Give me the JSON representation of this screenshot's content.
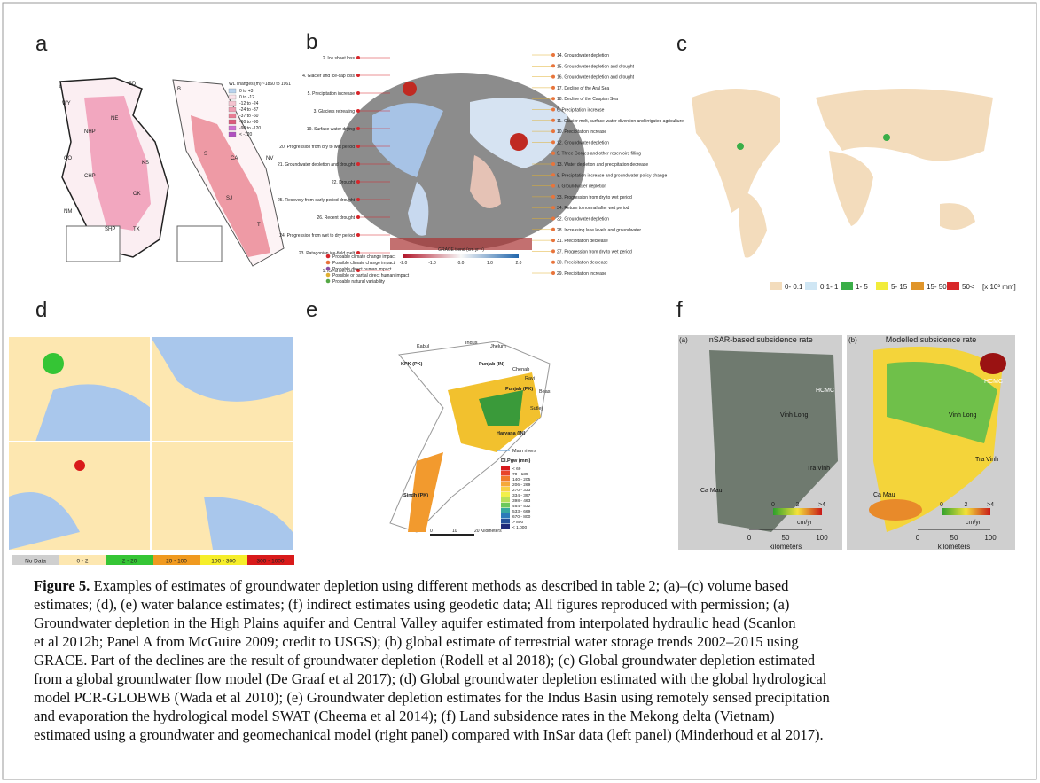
{
  "panels": {
    "a": {
      "letter": "a",
      "labels": [
        "A",
        "B",
        "WY",
        "SD",
        "NE",
        "CO",
        "KS",
        "OK",
        "NM",
        "TX",
        "NHP",
        "CHP",
        "SHP",
        "NV",
        "CA",
        "S",
        "SJ",
        "T"
      ],
      "legend_title": "WL changes (m) ~1860 to 1961",
      "legend": [
        "0 to +3",
        "0 to -12",
        "-12 to -24",
        "-24 to -37",
        "-37 to -60",
        "-60 to -90",
        "-90 to -120",
        "< -120"
      ]
    },
    "b": {
      "letter": "b",
      "left_labels": [
        "2. Ice sheet loss",
        "4. Glacier and ice-cap loss",
        "5. Precipitation increase",
        "3. Glaciers retreating",
        "19. Surface water drying",
        "20. Progression from dry to wet period",
        "21. Groundwater depletion and drought",
        "22. Drought",
        "25. Recovery from early-period drought",
        "26. Recent drought",
        "24. Progression from wet to dry period",
        "23. Patagonian ice-field melt",
        "1. Ice-sheet loss"
      ],
      "right_labels": [
        "14. Groundwater depletion",
        "15. Groundwater depletion and drought",
        "16. Groundwater depletion and drought",
        "17. Decline of the Aral Sea",
        "18. Decline of the Caspian Sea",
        "6. Precipitation increase",
        "11. Glacier melt, surface-water diversion and irrigated agriculture",
        "10. Precipitation increase",
        "12. Groundwater depletion",
        "9. Three Gorges and other reservoirs filling",
        "13. Water depletion and precipitation decrease",
        "8. Precipitation increase and groundwater policy change",
        "7. Groundwater depletion",
        "33. Progression from dry to wet period",
        "34. Return to normal after wet period",
        "32. Groundwater depletion",
        "28. Increasing lake levels and groundwater",
        "31. Precipitation decrease",
        "27. Progression from dry to wet period",
        "30. Precipitation decrease",
        "29. Precipitation increase"
      ],
      "legend": [
        {
          "label": "Probable climate change impact",
          "color": "#d7262b"
        },
        {
          "label": "Possible climate change impact",
          "color": "#e8743b"
        },
        {
          "label": "Probable direct human impact",
          "color": "#8a4fa3"
        },
        {
          "label": "Possible or partial direct human impact",
          "color": "#e0b030"
        },
        {
          "label": "Probable natural variability",
          "color": "#55a845"
        }
      ],
      "colorbar_title": "GRACE trend (cm yr⁻¹)",
      "colorbar_ticks": [
        "-2.0",
        "-1.0",
        "0.0",
        "1.0",
        "2.0"
      ]
    },
    "c": {
      "letter": "c",
      "legend": [
        {
          "label": "0- 0.1",
          "color": "#f3dcbc"
        },
        {
          "label": "0.1- 1",
          "color": "#cfe6f4"
        },
        {
          "label": "1- 5",
          "color": "#3aae48"
        },
        {
          "label": "5- 15",
          "color": "#f2ec3a"
        },
        {
          "label": "15- 50",
          "color": "#e0952a"
        },
        {
          "label": "50<",
          "color": "#d8282a"
        }
      ],
      "unit": "[x 10³ mm]"
    },
    "d": {
      "letter": "d",
      "legend": [
        {
          "label": "No Data",
          "color": "#cfcfcf"
        },
        {
          "label": "0 - 2",
          "color": "#fde7b0"
        },
        {
          "label": "2 - 20",
          "color": "#35c535"
        },
        {
          "label": "20 - 100",
          "color": "#f09a20"
        },
        {
          "label": "100 - 300",
          "color": "#f6ee2a"
        },
        {
          "label": "300 - 1000",
          "color": "#d91a1a"
        }
      ]
    },
    "e": {
      "letter": "e",
      "labels": [
        "Kabul",
        "Indus",
        "Jhelum",
        "Chenab",
        "Ravi",
        "Beas",
        "Sutlej",
        "KPK (PK)",
        "Punjab (IN)",
        "Punjab (PK)",
        "Haryana (IN)",
        "Sindh (PK)"
      ],
      "river_legend": "Main rivers",
      "legend_title": "DI.Pgw (mm)",
      "legend": [
        "< 69",
        "70 - 139",
        "140 - 205",
        "206 - 269",
        "270 - 333",
        "334 - 397",
        "398 - 463",
        "464 - 532",
        "533 - 669",
        "670 - 800",
        "> 800",
        "< 1,000"
      ],
      "scale": [
        "0",
        "10",
        "20 Kilometers"
      ]
    },
    "f": {
      "letter": "f",
      "left_tag": "(a)",
      "left_title": "InSAR-based subsidence rate",
      "right_tag": "(b)",
      "right_title": "Modelled subsidence rate",
      "places": [
        "HCMC",
        "Vinh Long",
        "Tra Vinh",
        "Ca Mau"
      ],
      "colorbar_ticks": [
        "0",
        "2",
        ">4"
      ],
      "colorbar_unit": "cm/yr",
      "scale_ticks": [
        "0",
        "50",
        "100"
      ],
      "scale_unit": "kilometers"
    }
  },
  "caption": {
    "label": "Figure 5.",
    "lines": [
      " Examples of estimates of groundwater depletion using different methods as described in table 2; (a)–(c) volume based",
      "estimates; (d), (e) water balance estimates; (f) indirect estimates using geodetic data; All figures reproduced with permission; (a)",
      "Groundwater depletion in the High Plains aquifer and Central Valley aquifer estimated from interpolated hydraulic head (Scanlon",
      "et al 2012b; Panel A from McGuire 2009; credit to USGS); (b) global estimate of terrestrial water storage trends 2002–2015 using",
      "GRACE. Part of the declines are the result of groundwater depletion (Rodell et al 2018); (c) Global groundwater depletion estimated",
      "from a global groundwater flow model (De Graaf et al 2017); (d) Global groundwater depletion estimated with the global hydrological",
      "model PCR-GLOBWB (Wada et al 2010); (e) Groundwater depletion estimates for the Indus Basin using remotely sensed precipitation",
      "and evaporation the hydrological model SWAT (Cheema et al 2014); (f) Land subsidence rates in the Mekong delta (Vietnam)",
      "estimated using a groundwater and geomechanical model (right panel) compared with InSar data (left panel) (Minderhoud et al 2017)."
    ]
  }
}
